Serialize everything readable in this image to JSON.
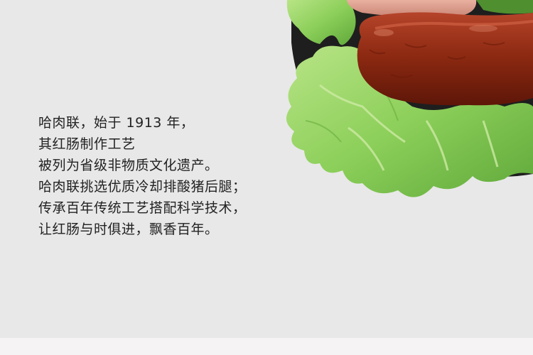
{
  "description_lines": [
    "哈肉联，始于 1913 年，",
    "其红肠制作工艺",
    "被列为省级非物质文化遗产。",
    "哈肉联挑选优质冷却排酸猪后腿；",
    "传承百年传统工艺搭配科学技术，",
    "让红肠与时俱进，飘香百年。"
  ],
  "colors": {
    "background": "#e8e8e8",
    "text": "#222222",
    "sausage": "#8e2a12",
    "lettuce": "#8ccf5a",
    "plate": "#1e1e1e"
  },
  "icons": {
    "product_photo": "red-sausage-on-lettuce-plate-image"
  }
}
